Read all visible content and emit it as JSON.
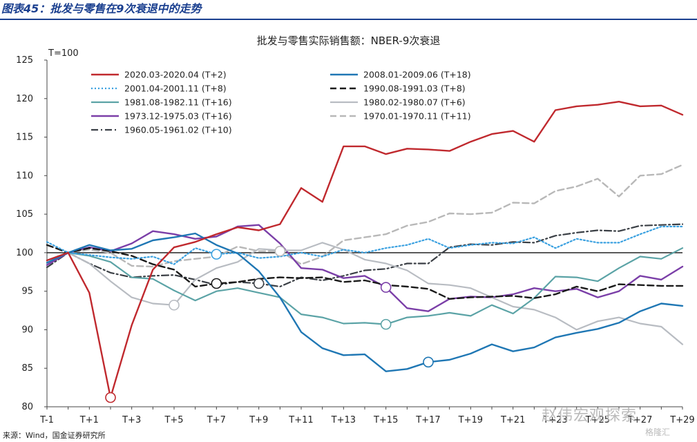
{
  "header": {
    "figure_title": "图表45：批发与零售在9次衰退中的走势",
    "source": "来源：Wind，国金证券研究所",
    "watermark": "赵伟宏观探索",
    "watermark2": "格隆汇"
  },
  "chart_data": {
    "type": "line",
    "title": "批发与零售实际销售额：NBER-9次衰退",
    "unit_label": "T=100",
    "ylim": [
      80,
      125
    ],
    "yticks": [
      80,
      85,
      90,
      95,
      100,
      105,
      110,
      115,
      120,
      125
    ],
    "x": [
      "T-1",
      "T",
      "T+1",
      "T+2",
      "T+3",
      "T+4",
      "T+5",
      "T+6",
      "T+7",
      "T+8",
      "T+9",
      "T+10",
      "T+11",
      "T+12",
      "T+13",
      "T+14",
      "T+15",
      "T+16",
      "T+17",
      "T+18",
      "T+19",
      "T+20",
      "T+21",
      "T+22",
      "T+23",
      "T+24",
      "T+25",
      "T+26",
      "T+27",
      "T+28",
      "T+29"
    ],
    "xtick_labels": [
      "T-1",
      "T+1",
      "T+3",
      "T+5",
      "T+7",
      "T+9",
      "T+11",
      "T+13",
      "T+15",
      "T+17",
      "T+19",
      "T+21",
      "T+23",
      "T+25",
      "T+27",
      "T+29"
    ],
    "reference_line": 100,
    "legend_position": "top",
    "series": [
      {
        "name": "2020.03-2020.04  (T+2)",
        "color": "#c0292e",
        "dash": "solid",
        "width": 2.4,
        "values": [
          99.0,
          100.0,
          94.8,
          81.2,
          90.6,
          97.8,
          100.7,
          101.4,
          102.4,
          103.3,
          102.9,
          103.7,
          108.4,
          106.6,
          113.8,
          113.8,
          112.8,
          113.5,
          113.4,
          113.2,
          114.4,
          115.4,
          115.8,
          114.4,
          118.5,
          119.0,
          119.2,
          119.6,
          119.0,
          119.1,
          117.9
        ],
        "end_marker": 3
      },
      {
        "name": "2008.01-2009.06  (T+18)",
        "color": "#1f77b4",
        "dash": "solid",
        "width": 2.4,
        "values": [
          98.7,
          100.0,
          101.0,
          100.3,
          100.5,
          101.6,
          102.0,
          102.5,
          101.0,
          99.9,
          97.6,
          94.2,
          89.7,
          87.6,
          86.7,
          86.8,
          84.6,
          84.9,
          85.8,
          86.1,
          86.9,
          88.1,
          87.2,
          87.7,
          89.0,
          89.6,
          90.1,
          90.9,
          92.4,
          93.4,
          93.1
        ],
        "end_marker": 18
      },
      {
        "name": "2001.04-2001.11  (T+8)",
        "color": "#39a0e0",
        "dash": "dot",
        "width": 2.2,
        "values": [
          101.4,
          100.0,
          99.7,
          99.4,
          99.2,
          99.5,
          98.5,
          100.6,
          99.8,
          100.0,
          99.3,
          99.5,
          100.0,
          99.5,
          100.4,
          100.0,
          100.6,
          101.0,
          101.8,
          100.6,
          101.0,
          101.3,
          101.2,
          102.0,
          100.6,
          101.8,
          101.3,
          101.3,
          102.4,
          103.4,
          103.4
        ],
        "end_marker": 8
      },
      {
        "name": "1990.08-1991.03  (T+8)",
        "color": "#1a1a1a",
        "dash": "dash",
        "width": 2.4,
        "values": [
          101.0,
          100.0,
          100.6,
          100.2,
          99.6,
          98.5,
          97.8,
          95.6,
          96.0,
          96.2,
          96.6,
          96.8,
          96.7,
          96.8,
          96.2,
          96.4,
          95.8,
          95.6,
          95.3,
          94.0,
          94.2,
          94.3,
          94.4,
          94.1,
          94.6,
          95.6,
          95.0,
          95.9,
          95.8,
          95.7,
          95.7
        ],
        "end_marker": 8
      },
      {
        "name": "1981.08-1982.11  (T+16)",
        "color": "#5ba3a6",
        "dash": "solid",
        "width": 2.2,
        "values": [
          99.0,
          100.0,
          99.6,
          98.8,
          96.8,
          96.6,
          95.1,
          93.8,
          95.0,
          95.4,
          94.8,
          94.2,
          92.0,
          91.6,
          90.8,
          90.9,
          90.7,
          91.6,
          91.8,
          92.2,
          91.8,
          93.2,
          92.1,
          94.1,
          96.9,
          96.8,
          96.3,
          98.0,
          99.5,
          99.2,
          100.6
        ],
        "end_marker": 16
      },
      {
        "name": "1980.02-1980.07  (T+6)",
        "color": "#b8bcc2",
        "dash": "solid",
        "width": 2.2,
        "values": [
          99.0,
          100.0,
          98.6,
          96.3,
          94.2,
          93.4,
          93.2,
          96.5,
          98.0,
          98.8,
          100.5,
          100.3,
          100.3,
          101.3,
          100.4,
          99.1,
          98.6,
          97.7,
          96.0,
          95.8,
          95.4,
          94.2,
          93.0,
          92.6,
          91.6,
          90.0,
          91.1,
          91.6,
          90.8,
          90.4,
          88.1
        ],
        "end_marker": 6
      },
      {
        "name": "1973.12-1975.03  (T+16)",
        "color": "#7b3fa8",
        "dash": "solid",
        "width": 2.4,
        "values": [
          98.4,
          100.0,
          100.7,
          100.2,
          101.2,
          102.8,
          102.4,
          101.8,
          102.1,
          103.4,
          103.6,
          101.2,
          98.0,
          97.8,
          96.7,
          97.0,
          95.5,
          92.8,
          92.4,
          94.0,
          94.3,
          94.2,
          94.6,
          95.4,
          95.0,
          95.3,
          94.2,
          95.0,
          97.0,
          96.5,
          98.2
        ],
        "end_marker": 16
      },
      {
        "name": "1970.01-1970.11  (T+11)",
        "color": "#b8b8b8",
        "dash": "dash",
        "width": 2.4,
        "values": [
          98.6,
          100.0,
          100.4,
          100.0,
          98.3,
          98.2,
          98.9,
          99.2,
          99.5,
          100.8,
          100.2,
          100.2,
          98.5,
          99.5,
          101.6,
          102.0,
          102.4,
          103.5,
          104.0,
          105.1,
          105.0,
          105.2,
          106.5,
          106.4,
          108.0,
          108.6,
          109.6,
          107.3,
          110.0,
          110.2,
          111.4
        ],
        "end_marker": 11
      },
      {
        "name": "1960.05-1961.02  (T+10)",
        "color": "#3a3f45",
        "dash": "dashdot",
        "width": 2.2,
        "values": [
          98.1,
          100.0,
          98.6,
          97.4,
          96.8,
          97.0,
          97.1,
          96.5,
          95.8,
          96.2,
          96.0,
          95.6,
          96.8,
          96.4,
          97.0,
          97.7,
          97.9,
          98.6,
          98.6,
          100.7,
          101.1,
          101.0,
          101.4,
          101.3,
          102.2,
          102.6,
          102.9,
          102.8,
          103.5,
          103.6,
          103.7
        ],
        "end_marker": 10
      }
    ]
  }
}
